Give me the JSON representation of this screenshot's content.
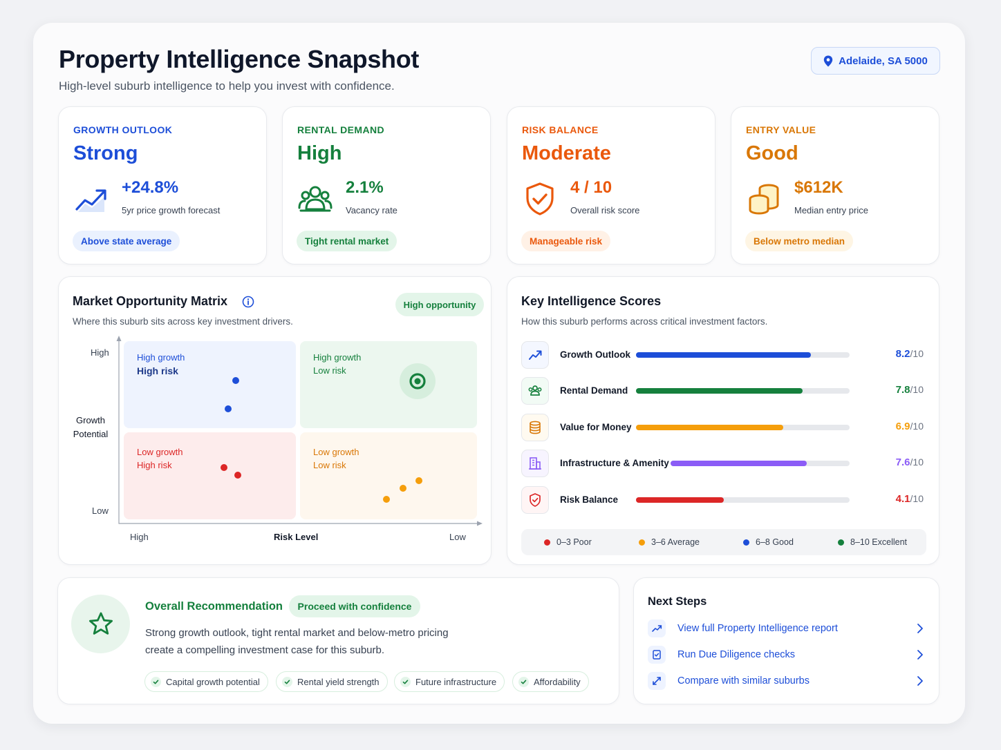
{
  "header": {
    "title": "Property Intelligence Snapshot",
    "subtitle": "High-level suburb intelligence to help you invest with confidence.",
    "location": "Adelaide, SA 5000",
    "location_icon": "map-pin-icon"
  },
  "kpis": [
    {
      "label": "GROWTH OUTLOOK",
      "rating": "Strong",
      "value": "+24.8%",
      "description": "5yr price growth forecast",
      "badge": "Above state average",
      "icon": "trending-up-icon",
      "color": "#1d4ed8"
    },
    {
      "label": "RENTAL DEMAND",
      "rating": "High",
      "value": "2.1%",
      "description": "Vacancy rate",
      "badge": "Tight rental market",
      "icon": "people-icon",
      "color": "#15803d"
    },
    {
      "label": "RISK BALANCE",
      "rating": "Moderate",
      "value": "4 / 10",
      "description": "Overall risk score",
      "badge": "Manageable risk",
      "icon": "shield-check-icon",
      "color": "#ea580c"
    },
    {
      "label": "ENTRY VALUE",
      "rating": "Good",
      "value": "$612K",
      "description": "Median entry price",
      "badge": "Below metro median",
      "icon": "coins-icon",
      "color": "#d97706"
    }
  ],
  "matrix": {
    "title": "Market Opportunity Matrix",
    "subtitle": "Where this suburb sits across key investment drivers.",
    "badge": "High opportunity",
    "y_axis": {
      "label_line1": "Growth",
      "label_line2": "Potential",
      "high": "High",
      "low": "Low"
    },
    "x_axis": {
      "label": "Risk Level",
      "left": "High",
      "right": "Low"
    },
    "quadrants": {
      "top_left": {
        "line1": "High growth",
        "line2": "High risk"
      },
      "top_right": {
        "line1": "High growth",
        "line2": "Low risk"
      },
      "bottom_left": {
        "line1": "Low growth",
        "line2": "High risk"
      },
      "bottom_right": {
        "line1": "Low growth",
        "line2": "Low risk"
      }
    }
  },
  "scores": {
    "title": "Key Intelligence Scores",
    "subtitle": "How this suburb performs across critical investment factors.",
    "denominator": "/10",
    "items": [
      {
        "label": "Growth Outlook",
        "score": 8.2,
        "display": "8.2",
        "color": "#1d4ed8",
        "icon": "trending-up-icon"
      },
      {
        "label": "Rental Demand",
        "score": 7.8,
        "display": "7.8",
        "color": "#15803d",
        "icon": "people-icon"
      },
      {
        "label": "Value for Money",
        "score": 6.9,
        "display": "6.9",
        "color": "#f59e0b",
        "icon": "coins-icon"
      },
      {
        "label": "Infrastructure & Amenity",
        "score": 7.6,
        "display": "7.6",
        "color": "#8b5cf6",
        "icon": "building-icon"
      },
      {
        "label": "Risk Balance",
        "score": 4.1,
        "display": "4.1",
        "color": "#dc2626",
        "icon": "shield-check-icon"
      }
    ],
    "legend": [
      {
        "label": "0–3  Poor",
        "color": "#dc2626"
      },
      {
        "label": "3–6  Average",
        "color": "#f59e0b"
      },
      {
        "label": "6–8  Good",
        "color": "#1d4ed8"
      },
      {
        "label": "8–10  Excellent",
        "color": "#15803d"
      }
    ]
  },
  "recommendation": {
    "title": "Overall Recommendation",
    "badge": "Proceed with confidence",
    "text_line1": "Strong growth outlook, tight rental market and below-metro pricing",
    "text_line2": "create a compelling investment case for this suburb.",
    "icon": "star-icon",
    "chips": [
      "Capital growth potential",
      "Rental yield strength",
      "Future infrastructure",
      "Affordability"
    ]
  },
  "next_steps": {
    "title": "Next Steps",
    "items": [
      {
        "label": "View full Property Intelligence report",
        "icon": "trending-up-icon"
      },
      {
        "label": "Run Due Diligence checks",
        "icon": "document-check-icon"
      },
      {
        "label": "Compare with similar suburbs",
        "icon": "compare-arrows-icon"
      }
    ]
  }
}
